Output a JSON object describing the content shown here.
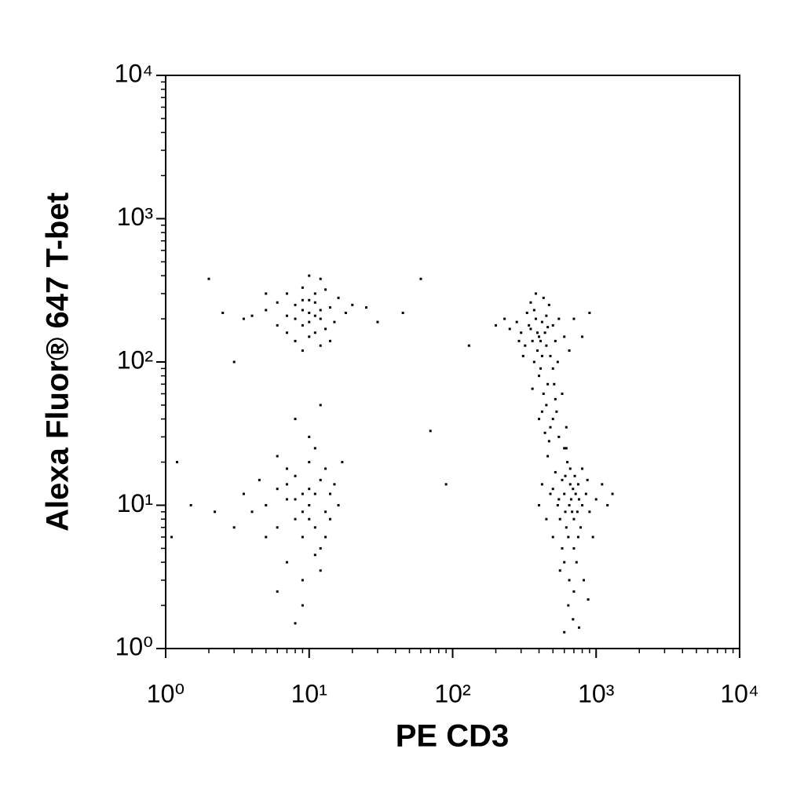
{
  "chart_data": {
    "type": "scatter",
    "xlabel": "PE CD3",
    "ylabel": "Alexa Fluor® 647 T-bet",
    "xscale": "log",
    "yscale": "log",
    "xlim": [
      1,
      10000
    ],
    "ylim": [
      1,
      10000
    ],
    "xticks": [
      {
        "value": 1,
        "label": "10⁰"
      },
      {
        "value": 10,
        "label": "10¹"
      },
      {
        "value": 100,
        "label": "10²"
      },
      {
        "value": 1000,
        "label": "10³"
      },
      {
        "value": 10000,
        "label": "10⁴"
      }
    ],
    "yticks": [
      {
        "value": 1,
        "label": "10⁰"
      },
      {
        "value": 10,
        "label": "10¹"
      },
      {
        "value": 100,
        "label": "10²"
      },
      {
        "value": 1000,
        "label": "10³"
      },
      {
        "value": 10000,
        "label": "10⁴"
      }
    ],
    "minor_ticks": [
      2,
      3,
      4,
      5,
      6,
      7,
      8,
      9,
      20,
      30,
      40,
      50,
      60,
      70,
      80,
      90,
      200,
      300,
      400,
      500,
      600,
      700,
      800,
      900,
      2000,
      3000,
      4000,
      5000,
      6000,
      7000,
      8000,
      9000
    ],
    "color": "#000000",
    "x": [
      10,
      8,
      12,
      9,
      11,
      7,
      14,
      10,
      6,
      13,
      9,
      12,
      8,
      15,
      5,
      11,
      10,
      7,
      16,
      4,
      9,
      12,
      10,
      8,
      13,
      6,
      11,
      18,
      20,
      3.5,
      14,
      9,
      10,
      12,
      7,
      11,
      9,
      25,
      3,
      5,
      9,
      10,
      8,
      12,
      7,
      11,
      6,
      13,
      9,
      10,
      5,
      14,
      8,
      12,
      7,
      11,
      9,
      6,
      15,
      4,
      10,
      8,
      13,
      9,
      11,
      5,
      7,
      14,
      16,
      3.5,
      10,
      8,
      12,
      6,
      9,
      11,
      7,
      4.5,
      13,
      10,
      3,
      17,
      8,
      12,
      6,
      400,
      350,
      450,
      380,
      420,
      300,
      500,
      360,
      470,
      330,
      410,
      390,
      550,
      280,
      440,
      370,
      600,
      320,
      430,
      480,
      250,
      520,
      400,
      350,
      460,
      380,
      700,
      310,
      420,
      540,
      360,
      290,
      650,
      450,
      390,
      200,
      800,
      410,
      340,
      500,
      370,
      430,
      230,
      900,
      460,
      450,
      500,
      420,
      550,
      480,
      520,
      400,
      600,
      470,
      530,
      440,
      580,
      460,
      510,
      620,
      650,
      600,
      700,
      550,
      750,
      620,
      680,
      580,
      720,
      640,
      500,
      800,
      660,
      610,
      700,
      560,
      760,
      630,
      690,
      540,
      850,
      600,
      710,
      650,
      480,
      900,
      620,
      750,
      700,
      580,
      800,
      660,
      1000,
      450,
      730,
      640,
      1100,
      780,
      520,
      690,
      820,
      600,
      950,
      400,
      1200,
      560,
      870,
      670,
      740,
      610,
      500,
      1300,
      420,
      880,
      760,
      1.5,
      2,
      1.2,
      2.5,
      30,
      45,
      60,
      90,
      70,
      1.1,
      2.2,
      130
    ],
    "values": [
      220,
      250,
      200,
      180,
      300,
      210,
      240,
      150,
      260,
      170,
      330,
      380,
      140,
      190,
      230,
      260,
      190,
      300,
      280,
      210,
      230,
      230,
      270,
      200,
      320,
      180,
      160,
      220,
      250,
      200,
      140,
      120,
      400,
      130,
      160,
      210,
      270,
      240,
      100,
      300,
      12,
      10,
      8,
      15,
      11,
      7,
      13,
      9,
      6,
      20,
      10,
      12,
      16,
      5,
      4,
      25,
      3,
      7,
      14,
      9,
      13,
      11,
      18,
      9,
      12,
      6,
      18,
      8,
      10,
      12,
      30,
      40,
      3.5,
      2.5,
      2,
      4.5,
      14,
      15,
      6,
      8,
      7,
      20,
      1.5,
      50,
      22,
      150,
      170,
      130,
      200,
      110,
      160,
      180,
      140,
      250,
      220,
      90,
      120,
      200,
      190,
      160,
      100,
      150,
      130,
      280,
      110,
      170,
      140,
      80,
      260,
      70,
      300,
      200,
      110,
      190,
      100,
      65,
      140,
      120,
      210,
      160,
      180,
      150,
      140,
      180,
      90,
      230,
      60,
      200,
      220,
      175,
      50,
      40,
      45,
      30,
      35,
      55,
      40,
      25,
      28,
      45,
      32,
      60,
      22,
      70,
      35,
      10,
      12,
      8,
      11,
      14,
      7,
      9,
      15,
      12,
      6,
      13,
      10,
      18,
      9,
      5,
      8,
      11,
      20,
      13,
      10,
      12,
      4,
      16,
      3,
      12,
      9,
      25,
      6,
      2.5,
      5,
      18,
      14,
      11,
      8,
      4,
      2,
      14,
      7,
      17,
      1.6,
      3,
      1.3,
      6,
      10,
      10,
      3.5,
      15,
      11,
      9,
      16,
      6,
      12,
      14,
      2.2,
      1.4,
      10,
      380,
      20,
      220,
      190,
      220,
      380,
      14,
      33,
      6,
      9,
      130
    ]
  }
}
